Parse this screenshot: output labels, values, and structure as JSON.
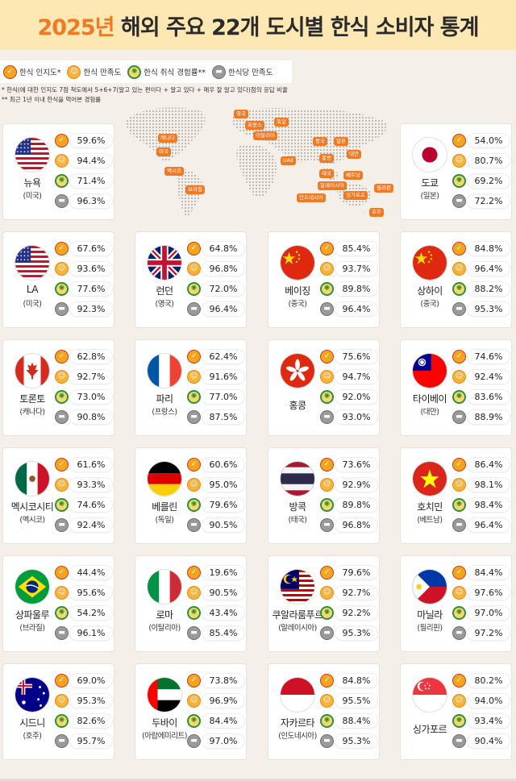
{
  "header": {
    "title_year": "2025년",
    "title_rest": "해외 주요 22개 도시별 한식 소비자 통계"
  },
  "legend": [
    {
      "key": "aw",
      "label": "한식 인지도*",
      "icon": "awareness-icon"
    },
    {
      "key": "sa",
      "label": "한식 만족도",
      "icon": "satisfaction-icon"
    },
    {
      "key": "ex",
      "label": "한식 취식 경험률**",
      "icon": "experience-icon"
    },
    {
      "key": "rs",
      "label": "한식당 만족도",
      "icon": "restaurant-icon"
    }
  ],
  "notes": [
    "* 한식(에 대한 인지도 7점 척도에서 5+6+7(알고 있는 편이다 + 알고 있다 + 매우 잘 알고 있다)점의 응답 비율",
    "** 최근 1년 이내 한식을 먹어본 경험률"
  ],
  "map_labels": [
    "캐나다",
    "미국",
    "멕시코",
    "브라질",
    "영국",
    "프랑스",
    "독일",
    "이탈리아",
    "UAE",
    "중국",
    "홍콩",
    "일본",
    "대만",
    "태국",
    "베트남",
    "말레이시아",
    "필리핀",
    "인도네시아",
    "싱가포르",
    "호주"
  ],
  "colors": {
    "accent": "#f07a24",
    "header_bg": "#fde8b3",
    "page_bg": "#f4efe9"
  },
  "chart_data": {
    "type": "table",
    "columns": [
      "한식 인지도*",
      "한식 만족도",
      "한식 취식 경험률**",
      "한식당 만족도"
    ],
    "unit": "%",
    "cities": [
      {
        "name": "뉴욕",
        "country": "(미국)",
        "flag": "us",
        "values": [
          59.6,
          94.4,
          71.4,
          96.3
        ]
      },
      {
        "name": "도쿄",
        "country": "(일본)",
        "flag": "jp",
        "values": [
          54.0,
          80.7,
          69.2,
          72.2
        ]
      },
      {
        "name": "LA",
        "country": "(미국)",
        "flag": "us",
        "values": [
          67.6,
          93.6,
          77.6,
          92.3
        ]
      },
      {
        "name": "런던",
        "country": "(영국)",
        "flag": "uk",
        "values": [
          64.8,
          96.8,
          72.0,
          96.4
        ]
      },
      {
        "name": "베이징",
        "country": "(중국)",
        "flag": "cn",
        "values": [
          85.4,
          93.7,
          89.8,
          96.4
        ]
      },
      {
        "name": "상하이",
        "country": "(중국)",
        "flag": "cn",
        "values": [
          84.8,
          96.4,
          88.2,
          95.3
        ]
      },
      {
        "name": "토론토",
        "country": "(캐나다)",
        "flag": "ca",
        "values": [
          62.8,
          92.7,
          73.0,
          90.8
        ]
      },
      {
        "name": "파리",
        "country": "(프랑스)",
        "flag": "fr",
        "values": [
          62.4,
          91.6,
          77.0,
          87.5
        ]
      },
      {
        "name": "홍콩",
        "country": "",
        "flag": "hk",
        "values": [
          75.6,
          94.7,
          92.0,
          93.0
        ]
      },
      {
        "name": "타이베이",
        "country": "(대만)",
        "flag": "tw",
        "values": [
          74.6,
          92.4,
          83.6,
          88.9
        ]
      },
      {
        "name": "멕시코시티",
        "country": "(멕시코)",
        "flag": "mx",
        "values": [
          61.6,
          93.3,
          74.6,
          92.4
        ]
      },
      {
        "name": "베를린",
        "country": "(독일)",
        "flag": "de",
        "values": [
          60.6,
          95.0,
          79.6,
          90.5
        ]
      },
      {
        "name": "방콕",
        "country": "(태국)",
        "flag": "th",
        "values": [
          73.6,
          92.9,
          89.8,
          96.8
        ]
      },
      {
        "name": "호치민",
        "country": "(베트남)",
        "flag": "vn",
        "values": [
          86.4,
          98.1,
          98.4,
          96.4
        ]
      },
      {
        "name": "상파울루",
        "country": "(브라질)",
        "flag": "br",
        "values": [
          44.4,
          95.6,
          54.2,
          96.1
        ]
      },
      {
        "name": "로마",
        "country": "(이탈리아)",
        "flag": "it",
        "values": [
          19.6,
          90.5,
          43.4,
          85.4
        ]
      },
      {
        "name": "쿠알라룸푸르",
        "country": "(말레이시아)",
        "flag": "my",
        "values": [
          79.6,
          92.7,
          92.2,
          95.3
        ]
      },
      {
        "name": "마닐라",
        "country": "(필리핀)",
        "flag": "ph",
        "values": [
          84.4,
          97.6,
          97.0,
          97.2
        ]
      },
      {
        "name": "시드니",
        "country": "(호주)",
        "flag": "au",
        "values": [
          69.0,
          95.3,
          82.6,
          95.7
        ]
      },
      {
        "name": "두바이",
        "country": "(아랍에미리트)",
        "flag": "ae",
        "values": [
          73.8,
          96.9,
          84.4,
          97.0
        ]
      },
      {
        "name": "자카르타",
        "country": "(인도네시아)",
        "flag": "id",
        "values": [
          84.8,
          95.5,
          88.4,
          95.3
        ]
      },
      {
        "name": "싱가포르",
        "country": "",
        "flag": "sg",
        "values": [
          80.2,
          94.0,
          93.4,
          90.4
        ]
      }
    ]
  }
}
